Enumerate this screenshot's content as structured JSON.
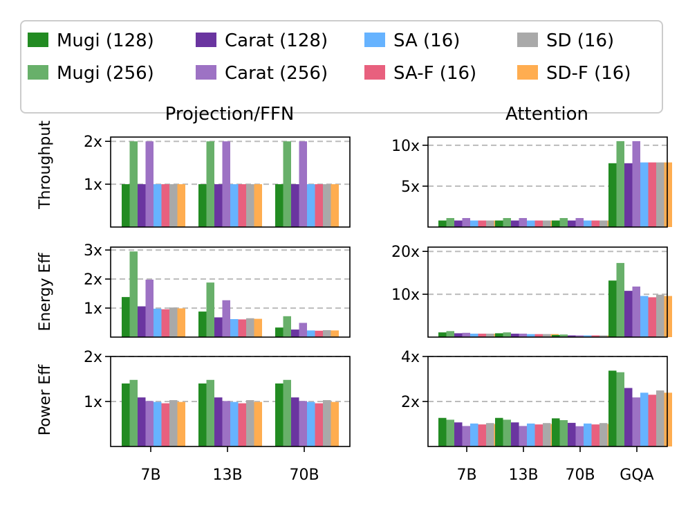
{
  "legend": [
    {
      "label": "Mugi (128)",
      "color": "#228b22"
    },
    {
      "label": "Mugi (256)",
      "color": "#68b06a"
    },
    {
      "label": "Carat (128)",
      "color": "#6a35a0"
    },
    {
      "label": "Carat (256)",
      "color": "#9d72c4"
    },
    {
      "label": "SA (16)",
      "color": "#66b3ff"
    },
    {
      "label": "SA-F (16)",
      "color": "#e8607e"
    },
    {
      "label": "SD (16)",
      "color": "#a9a9a9"
    },
    {
      "label": "SD-F (16)",
      "color": "#ffad50"
    }
  ],
  "columns": {
    "left": "Projection/FFN",
    "right": "Attention"
  },
  "rows": [
    "Throughput",
    "Energy Eff",
    "Power Eff"
  ],
  "chart_data": [
    {
      "type": "bar",
      "id": "proj-throughput",
      "title": "Projection/FFN",
      "ylabel": "Throughput",
      "categories": [
        "7B",
        "13B",
        "70B"
      ],
      "ylim": [
        0,
        2.1
      ],
      "yticks": [
        1,
        2
      ],
      "yticklabels": [
        "1x",
        "2x"
      ],
      "show_xticks": false,
      "series": [
        {
          "name": "Mugi (128)",
          "values": [
            1.0,
            1.0,
            1.0
          ]
        },
        {
          "name": "Mugi (256)",
          "values": [
            2.0,
            2.0,
            2.0
          ]
        },
        {
          "name": "Carat (128)",
          "values": [
            1.0,
            1.0,
            1.0
          ]
        },
        {
          "name": "Carat (256)",
          "values": [
            2.0,
            2.0,
            2.0
          ]
        },
        {
          "name": "SA (16)",
          "values": [
            1.0,
            1.0,
            1.0
          ]
        },
        {
          "name": "SA-F (16)",
          "values": [
            1.0,
            1.0,
            1.0
          ]
        },
        {
          "name": "SD (16)",
          "values": [
            1.0,
            1.0,
            1.0
          ]
        },
        {
          "name": "SD-F (16)",
          "values": [
            1.0,
            1.0,
            1.0
          ]
        }
      ]
    },
    {
      "type": "bar",
      "id": "attn-throughput",
      "title": "Attention",
      "ylabel": "",
      "categories": [
        "7B",
        "13B",
        "70B",
        "GQA"
      ],
      "ylim": [
        0,
        11
      ],
      "yticks": [
        5,
        10
      ],
      "yticklabels": [
        "5x",
        "10x"
      ],
      "show_xticks": false,
      "series": [
        {
          "name": "Mugi (128)",
          "values": [
            0.8,
            0.8,
            0.8,
            7.8
          ]
        },
        {
          "name": "Mugi (256)",
          "values": [
            1.1,
            1.1,
            1.1,
            10.5
          ]
        },
        {
          "name": "Carat (128)",
          "values": [
            0.8,
            0.8,
            0.8,
            7.8
          ]
        },
        {
          "name": "Carat (256)",
          "values": [
            1.1,
            1.1,
            1.1,
            10.5
          ]
        },
        {
          "name": "SA (16)",
          "values": [
            0.8,
            0.8,
            0.8,
            7.9
          ]
        },
        {
          "name": "SA-F (16)",
          "values": [
            0.8,
            0.8,
            0.8,
            7.9
          ]
        },
        {
          "name": "SD (16)",
          "values": [
            0.8,
            0.8,
            0.8,
            7.9
          ]
        },
        {
          "name": "SD-F (16)",
          "values": [
            0.8,
            0.8,
            0.8,
            7.9
          ]
        }
      ]
    },
    {
      "type": "bar",
      "id": "proj-energy",
      "title": "",
      "ylabel": "Energy Eff",
      "categories": [
        "7B",
        "13B",
        "70B"
      ],
      "ylim": [
        0,
        3.1
      ],
      "yticks": [
        1,
        2,
        3
      ],
      "yticklabels": [
        "1x",
        "2x",
        "3x"
      ],
      "show_xticks": false,
      "series": [
        {
          "name": "Mugi (128)",
          "values": [
            1.38,
            0.88,
            0.33
          ]
        },
        {
          "name": "Mugi (256)",
          "values": [
            2.95,
            1.88,
            0.72
          ]
        },
        {
          "name": "Carat (128)",
          "values": [
            1.06,
            0.68,
            0.26
          ]
        },
        {
          "name": "Carat (256)",
          "values": [
            1.98,
            1.27,
            0.49
          ]
        },
        {
          "name": "SA (16)",
          "values": [
            0.98,
            0.62,
            0.23
          ]
        },
        {
          "name": "SA-F (16)",
          "values": [
            0.96,
            0.61,
            0.22
          ]
        },
        {
          "name": "SD (16)",
          "values": [
            1.02,
            0.65,
            0.24
          ]
        },
        {
          "name": "SD-F (16)",
          "values": [
            0.99,
            0.63,
            0.23
          ]
        }
      ]
    },
    {
      "type": "bar",
      "id": "attn-energy",
      "title": "",
      "ylabel": "",
      "categories": [
        "7B",
        "13B",
        "70B",
        "GQA"
      ],
      "ylim": [
        0,
        21
      ],
      "yticks": [
        10,
        20
      ],
      "yticklabels": [
        "10x",
        "20x"
      ],
      "show_xticks": false,
      "series": [
        {
          "name": "Mugi (128)",
          "values": [
            1.1,
            0.9,
            0.5,
            13.2
          ]
        },
        {
          "name": "Mugi (256)",
          "values": [
            1.4,
            1.1,
            0.6,
            17.3
          ]
        },
        {
          "name": "Carat (128)",
          "values": [
            0.9,
            0.8,
            0.4,
            10.8
          ]
        },
        {
          "name": "Carat (256)",
          "values": [
            1.0,
            0.8,
            0.4,
            11.8
          ]
        },
        {
          "name": "SA (16)",
          "values": [
            0.8,
            0.7,
            0.4,
            9.6
          ]
        },
        {
          "name": "SA-F (16)",
          "values": [
            0.8,
            0.7,
            0.4,
            9.3
          ]
        },
        {
          "name": "SD (16)",
          "values": [
            0.8,
            0.7,
            0.4,
            9.9
          ]
        },
        {
          "name": "SD-F (16)",
          "values": [
            0.8,
            0.7,
            0.4,
            9.6
          ]
        }
      ]
    },
    {
      "type": "bar",
      "id": "proj-power",
      "title": "",
      "ylabel": "Power Eff",
      "categories": [
        "7B",
        "13B",
        "70B"
      ],
      "ylim": [
        0,
        2.0
      ],
      "yticks": [
        1,
        2
      ],
      "yticklabels": [
        "1x",
        "2x"
      ],
      "show_xticks": true,
      "series": [
        {
          "name": "Mugi (128)",
          "values": [
            1.4,
            1.4,
            1.4
          ]
        },
        {
          "name": "Mugi (256)",
          "values": [
            1.48,
            1.48,
            1.48
          ]
        },
        {
          "name": "Carat (128)",
          "values": [
            1.09,
            1.09,
            1.09
          ]
        },
        {
          "name": "Carat (256)",
          "values": [
            1.01,
            1.01,
            1.01
          ]
        },
        {
          "name": "SA (16)",
          "values": [
            0.99,
            0.99,
            0.99
          ]
        },
        {
          "name": "SA-F (16)",
          "values": [
            0.96,
            0.96,
            0.96
          ]
        },
        {
          "name": "SD (16)",
          "values": [
            1.03,
            1.03,
            1.03
          ]
        },
        {
          "name": "SD-F (16)",
          "values": [
            0.99,
            0.99,
            0.99
          ]
        }
      ]
    },
    {
      "type": "bar",
      "id": "attn-power",
      "title": "",
      "ylabel": "",
      "categories": [
        "7B",
        "13B",
        "70B",
        "GQA"
      ],
      "ylim": [
        0,
        4.0
      ],
      "yticks": [
        2,
        4
      ],
      "yticklabels": [
        "2x",
        "4x"
      ],
      "show_xticks": true,
      "series": [
        {
          "name": "Mugi (128)",
          "values": [
            1.27,
            1.27,
            1.25,
            3.37
          ]
        },
        {
          "name": "Mugi (256)",
          "values": [
            1.19,
            1.19,
            1.17,
            3.3
          ]
        },
        {
          "name": "Carat (128)",
          "values": [
            1.07,
            1.07,
            1.05,
            2.6
          ]
        },
        {
          "name": "Carat (256)",
          "values": [
            0.91,
            0.91,
            0.9,
            2.18
          ]
        },
        {
          "name": "SA (16)",
          "values": [
            1.02,
            1.02,
            1.02,
            2.39
          ]
        },
        {
          "name": "SA-F (16)",
          "values": [
            0.98,
            0.98,
            0.98,
            2.3
          ]
        },
        {
          "name": "SD (16)",
          "values": [
            1.04,
            1.04,
            1.04,
            2.49
          ]
        },
        {
          "name": "SD-F (16)",
          "values": [
            1.0,
            1.0,
            1.0,
            2.39
          ]
        }
      ]
    }
  ]
}
